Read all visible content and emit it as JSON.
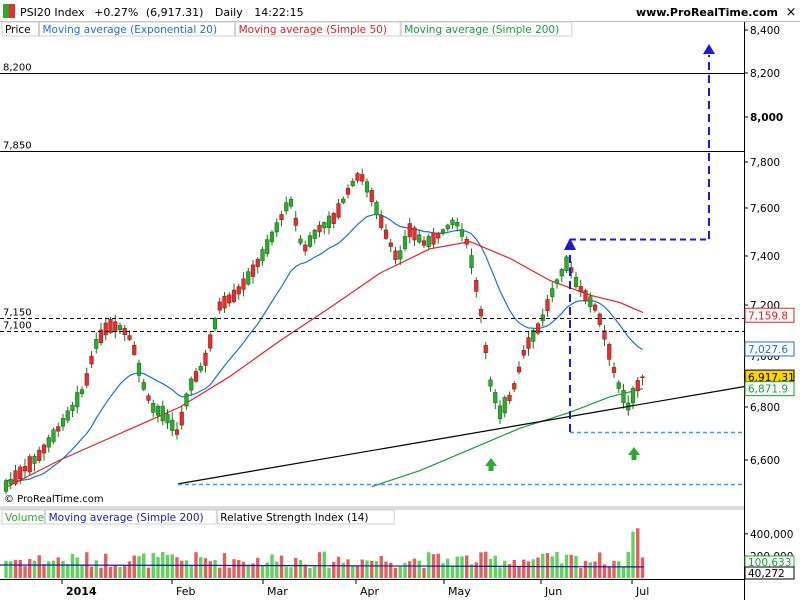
{
  "header": {
    "title": "PSI20 Index",
    "change": "+0.27%",
    "last": "(6,917.31)",
    "period": "Daily",
    "time": "14:22:15",
    "site": "www.ProRealTime.com",
    "watermark": "© ProRealTime.com"
  },
  "legend_price": [
    {
      "label": "Price",
      "color": "#000000"
    },
    {
      "label": "Moving average (Exponential 20)",
      "color": "#1f6fd0"
    },
    {
      "label": "Moving average (Simple 50)",
      "color": "#e02020"
    },
    {
      "label": "Moving average (Simple 200)",
      "color": "#1a9a3a"
    }
  ],
  "legend_volume": [
    {
      "label": "Volume",
      "color": "#2eaa2e"
    },
    {
      "label": "Moving average (Simple 200)",
      "color": "#1a1aa0"
    },
    {
      "label": "Relative Strength Index (14)",
      "color": "#000000"
    }
  ],
  "chart_data": {
    "type": "candlestick",
    "x_labels": [
      "2014",
      "Feb",
      "Mar",
      "Apr",
      "May",
      "Jun",
      "Jul"
    ],
    "y_ticks": [
      6600,
      6800,
      7000,
      7200,
      7400,
      7600,
      7800,
      8000,
      8200,
      8400
    ],
    "y_range": [
      6480,
      8470
    ],
    "price_tags": [
      {
        "label": "7,159.8",
        "value": 7159.8,
        "color": "#e02020"
      },
      {
        "label": "7,027.6",
        "value": 7027.6,
        "color": "#1f6fd0"
      },
      {
        "label": "6,917.31",
        "value": 6917.31,
        "color": "#000000",
        "fill": "#ffd200"
      },
      {
        "label": "6,871.9",
        "value": 6871.9,
        "color": "#1a9a3a"
      }
    ],
    "levels": [
      {
        "label": "8,200",
        "value": 8200,
        "style": "solid"
      },
      {
        "label": "7,850",
        "value": 7850,
        "style": "solid"
      },
      {
        "label": "7,150",
        "value": 7150,
        "style": "dashed"
      },
      {
        "label": "7,100",
        "value": 7100,
        "style": "dashed"
      }
    ],
    "volume_ticks": [
      {
        "label": "400,000",
        "value": 400000
      },
      {
        "label": "200,000",
        "value": 200000
      }
    ],
    "volume_tags": [
      {
        "label": "100,633",
        "value": 100633
      },
      {
        "label": "40,272",
        "value": 40272
      }
    ],
    "volume_range": [
      0,
      480000
    ]
  }
}
